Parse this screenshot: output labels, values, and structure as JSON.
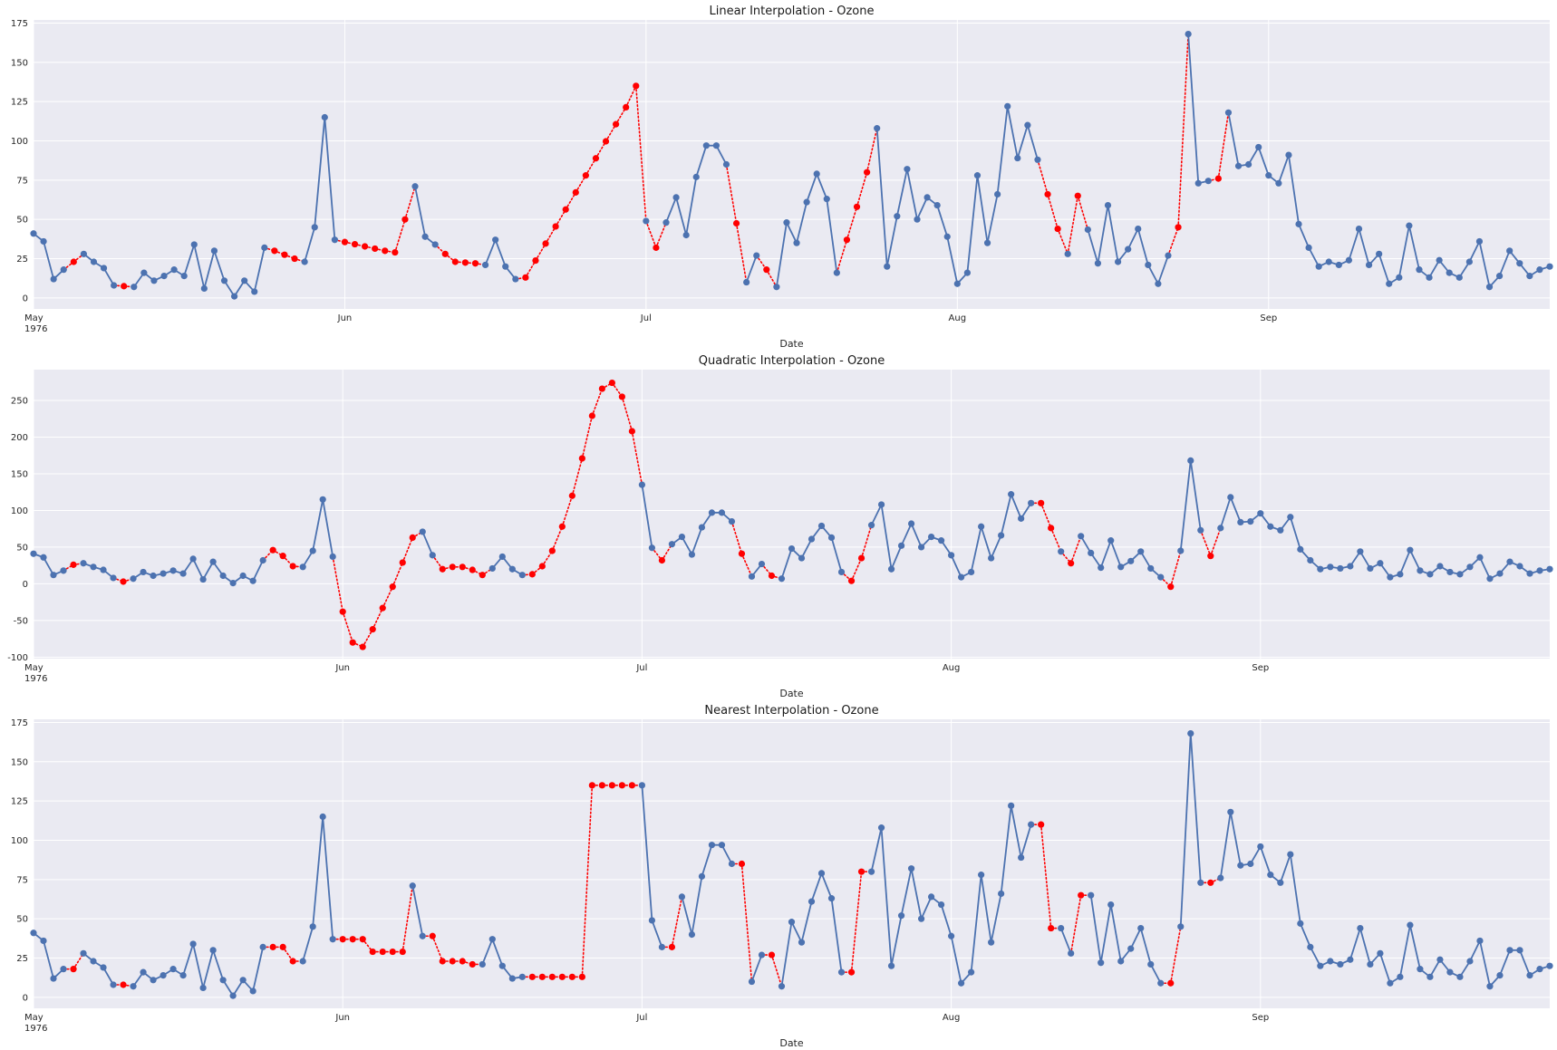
{
  "colors": {
    "background": "#eaeaf2",
    "grid": "#ffffff",
    "observed": "#4c72b0",
    "interpolated": "#ff0000"
  },
  "chart_data": [
    {
      "type": "line",
      "title": "Linear Interpolation - Ozone",
      "xlabel": "Date",
      "ylabel": "",
      "x_start": "1976-05-01",
      "x_ticks": [
        "May\n1976",
        "Jun",
        "Jul",
        "Aug",
        "Sep"
      ],
      "y_ticks": [
        0,
        25,
        50,
        75,
        100,
        125,
        150,
        175
      ],
      "ylim": [
        -7,
        177
      ],
      "grid": true,
      "values": [
        41,
        36,
        12,
        18,
        23,
        28,
        23,
        19,
        8,
        7.5,
        7,
        16,
        11,
        14,
        18,
        14,
        34,
        6,
        30,
        11,
        1,
        11,
        4,
        32,
        30,
        27.5,
        25,
        23,
        45,
        115,
        37,
        35.6,
        34.2,
        32.8,
        31.4,
        30,
        29,
        50,
        71,
        39,
        34,
        28,
        23,
        22.5,
        22,
        21,
        37,
        20,
        12,
        13,
        23.8,
        34.6,
        45.5,
        56.3,
        67.2,
        78,
        88.9,
        99.7,
        110.6,
        121.4,
        135,
        49,
        32,
        48,
        64,
        40,
        77,
        97,
        97,
        85,
        47.5,
        10,
        27,
        18,
        7,
        48,
        35,
        61,
        79,
        63,
        16,
        37,
        58,
        80,
        108,
        20,
        52,
        82,
        50,
        64,
        59,
        39,
        9,
        16,
        78,
        35,
        66,
        122,
        89,
        110,
        88,
        66,
        44,
        28,
        65,
        43.5,
        22,
        59,
        23,
        31,
        44,
        21,
        9,
        27,
        45,
        168,
        73,
        74.5,
        76,
        118,
        84,
        85,
        96,
        78,
        73,
        91,
        47,
        32,
        20,
        23,
        21,
        24,
        44,
        21,
        28,
        9,
        13,
        46,
        18,
        13,
        24,
        16,
        13,
        23,
        36,
        7,
        14,
        30,
        22,
        14,
        18,
        20
      ],
      "interpolated_idx": [
        4,
        9,
        24,
        25,
        26,
        31,
        32,
        33,
        34,
        35,
        36,
        37,
        41,
        42,
        43,
        44,
        49,
        50,
        51,
        52,
        53,
        54,
        55,
        56,
        57,
        58,
        59,
        60,
        62,
        70,
        73,
        81,
        82,
        83,
        101,
        102,
        104,
        114,
        118
      ]
    },
    {
      "type": "line",
      "title": "Quadratic Interpolation - Ozone",
      "xlabel": "Date",
      "ylabel": "",
      "x_start": "1976-05-01",
      "x_ticks": [
        "May\n1976",
        "Jun",
        "Jul",
        "Aug",
        "Sep"
      ],
      "y_ticks": [
        -100,
        -50,
        0,
        50,
        100,
        150,
        200,
        250
      ],
      "ylim": [
        -102,
        292
      ],
      "grid": true,
      "values": [
        41,
        36,
        12,
        18,
        26,
        28,
        23,
        19,
        8,
        3,
        7,
        16,
        11,
        14,
        18,
        14,
        34,
        6,
        30,
        11,
        1,
        11,
        4,
        32,
        46,
        38,
        24,
        23,
        45,
        115,
        37,
        -38,
        -80,
        -86,
        -62,
        -33,
        -4,
        29,
        63,
        71,
        39,
        20,
        23,
        23,
        19,
        12,
        21,
        37,
        20,
        12,
        13,
        24,
        45,
        78,
        120,
        171,
        229,
        266,
        274,
        255,
        208,
        135,
        49,
        32,
        54,
        64,
        40,
        77,
        97,
        97,
        85,
        41,
        10,
        27,
        11,
        7,
        48,
        35,
        61,
        79,
        63,
        16,
        4,
        35,
        80,
        108,
        20,
        52,
        82,
        50,
        64,
        59,
        39,
        9,
        16,
        78,
        35,
        66,
        122,
        89,
        110,
        110,
        76,
        44,
        28,
        65,
        42,
        22,
        59,
        23,
        31,
        44,
        21,
        9,
        -4,
        45,
        168,
        73,
        38,
        76,
        118,
        84,
        85,
        96,
        78,
        73,
        91,
        47,
        32,
        20,
        23,
        21,
        24,
        44,
        21,
        28,
        9,
        13,
        46,
        18,
        13,
        24,
        16,
        13,
        23,
        36,
        7,
        14,
        30,
        24,
        14,
        18,
        20
      ],
      "interpolated_idx": [
        4,
        9,
        24,
        25,
        26,
        31,
        32,
        33,
        34,
        35,
        36,
        37,
        38,
        41,
        42,
        43,
        44,
        45,
        50,
        51,
        52,
        53,
        54,
        55,
        56,
        57,
        58,
        59,
        60,
        63,
        71,
        74,
        82,
        83,
        101,
        102,
        104,
        114,
        118
      ]
    },
    {
      "type": "line",
      "title": "Nearest Interpolation - Ozone",
      "xlabel": "Date",
      "ylabel": "",
      "x_start": "1976-05-01",
      "x_ticks": [
        "May\n1976",
        "Jun",
        "Jul",
        "Aug",
        "Sep"
      ],
      "y_ticks": [
        0,
        25,
        50,
        75,
        100,
        125,
        150,
        175
      ],
      "ylim": [
        -7,
        177
      ],
      "grid": true,
      "values": [
        41,
        36,
        12,
        18,
        18,
        28,
        23,
        19,
        8,
        8,
        7,
        16,
        11,
        14,
        18,
        14,
        34,
        6,
        30,
        11,
        1,
        11,
        4,
        32,
        32,
        32,
        23,
        23,
        45,
        115,
        37,
        37,
        37,
        37,
        29,
        29,
        29,
        29,
        71,
        39,
        39,
        23,
        23,
        23,
        21,
        21,
        37,
        20,
        12,
        13,
        13,
        13,
        13,
        13,
        13,
        13,
        135,
        135,
        135,
        135,
        135,
        135,
        49,
        32,
        32,
        64,
        40,
        77,
        97,
        97,
        85,
        85,
        10,
        27,
        27,
        7,
        48,
        35,
        61,
        79,
        63,
        16,
        16,
        80,
        80,
        108,
        20,
        52,
        82,
        50,
        64,
        59,
        39,
        9,
        16,
        78,
        35,
        66,
        122,
        89,
        110,
        110,
        44,
        44,
        28,
        65,
        65,
        22,
        59,
        23,
        31,
        44,
        21,
        9,
        9,
        45,
        168,
        73,
        73,
        76,
        118,
        84,
        85,
        96,
        78,
        73,
        91,
        47,
        32,
        20,
        23,
        21,
        24,
        44,
        21,
        28,
        9,
        13,
        46,
        18,
        13,
        24,
        16,
        13,
        23,
        36,
        7,
        14,
        30,
        30,
        14,
        18,
        20
      ],
      "interpolated_idx": [
        4,
        9,
        24,
        25,
        26,
        31,
        32,
        33,
        34,
        35,
        36,
        37,
        40,
        41,
        42,
        43,
        44,
        50,
        51,
        52,
        53,
        54,
        55,
        56,
        57,
        58,
        59,
        60,
        64,
        71,
        74,
        82,
        83,
        101,
        102,
        105,
        114,
        118
      ]
    }
  ]
}
